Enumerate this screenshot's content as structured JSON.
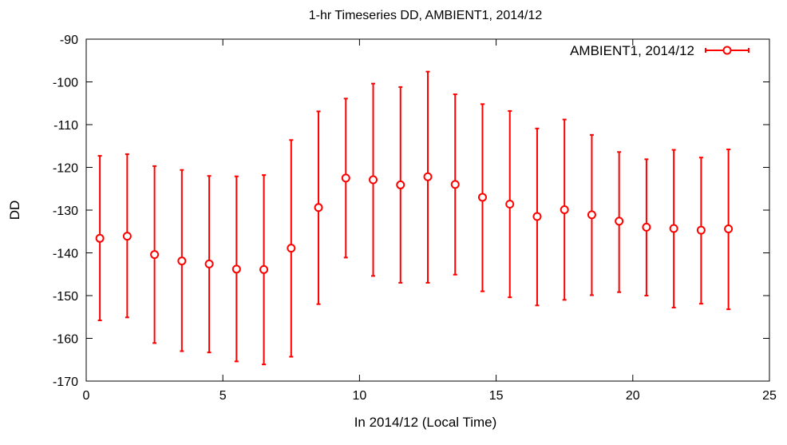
{
  "chart_data": {
    "type": "scatter",
    "title": "1-hr Timeseries DD, AMBIENT1, 2014/12",
    "xlabel": "In 2014/12 (Local Time)",
    "ylabel": "DD",
    "xlim": [
      0,
      25
    ],
    "ylim": [
      -170,
      -90
    ],
    "xticks": [
      0,
      5,
      10,
      15,
      20,
      25
    ],
    "yticks": [
      -170,
      -160,
      -150,
      -140,
      -130,
      -120,
      -110,
      -100,
      -90
    ],
    "grid": false,
    "legend_position": "top-right",
    "series": [
      {
        "name": "AMBIENT1, 2014/12",
        "color": "#ff0000",
        "marker": "open-circle",
        "points": [
          {
            "x": 0.5,
            "y": -136.6,
            "err_low": -155.8,
            "err_high": -117.3
          },
          {
            "x": 1.5,
            "y": -136.1,
            "err_low": -155.1,
            "err_high": -116.9
          },
          {
            "x": 2.5,
            "y": -140.4,
            "err_low": -161.1,
            "err_high": -119.7
          },
          {
            "x": 3.5,
            "y": -141.9,
            "err_low": -163.0,
            "err_high": -120.6
          },
          {
            "x": 4.5,
            "y": -142.6,
            "err_low": -163.3,
            "err_high": -122.0
          },
          {
            "x": 5.5,
            "y": -143.8,
            "err_low": -165.4,
            "err_high": -122.1
          },
          {
            "x": 6.5,
            "y": -143.9,
            "err_low": -166.1,
            "err_high": -121.8
          },
          {
            "x": 7.5,
            "y": -138.9,
            "err_low": -164.3,
            "err_high": -113.6
          },
          {
            "x": 8.5,
            "y": -129.4,
            "err_low": -152.0,
            "err_high": -106.9
          },
          {
            "x": 9.5,
            "y": -122.5,
            "err_low": -141.1,
            "err_high": -103.9
          },
          {
            "x": 10.5,
            "y": -122.9,
            "err_low": -145.4,
            "err_high": -100.4
          },
          {
            "x": 11.5,
            "y": -124.1,
            "err_low": -147.0,
            "err_high": -101.2
          },
          {
            "x": 12.5,
            "y": -122.2,
            "err_low": -147.0,
            "err_high": -97.6
          },
          {
            "x": 13.5,
            "y": -124.0,
            "err_low": -145.1,
            "err_high": -102.9
          },
          {
            "x": 14.5,
            "y": -127.0,
            "err_low": -149.0,
            "err_high": -105.2
          },
          {
            "x": 15.5,
            "y": -128.6,
            "err_low": -150.4,
            "err_high": -106.8
          },
          {
            "x": 16.5,
            "y": -131.5,
            "err_low": -152.3,
            "err_high": -110.9
          },
          {
            "x": 17.5,
            "y": -129.9,
            "err_low": -151.0,
            "err_high": -108.8
          },
          {
            "x": 18.5,
            "y": -131.1,
            "err_low": -149.9,
            "err_high": -112.4
          },
          {
            "x": 19.5,
            "y": -132.6,
            "err_low": -149.2,
            "err_high": -116.4
          },
          {
            "x": 20.5,
            "y": -134.0,
            "err_low": -150.0,
            "err_high": -118.1
          },
          {
            "x": 21.5,
            "y": -134.3,
            "err_low": -152.8,
            "err_high": -115.9
          },
          {
            "x": 22.5,
            "y": -134.7,
            "err_low": -151.9,
            "err_high": -117.7
          },
          {
            "x": 23.5,
            "y": -134.4,
            "err_low": -153.2,
            "err_high": -115.8
          }
        ]
      }
    ]
  }
}
